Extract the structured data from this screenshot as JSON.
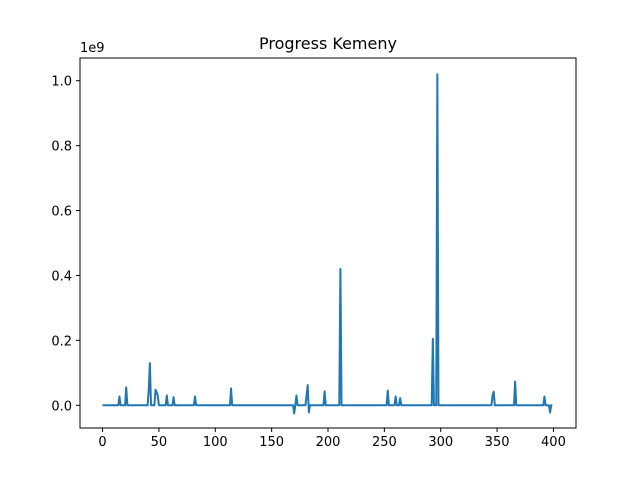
{
  "chart_data": {
    "type": "line",
    "title": "Progress Kemeny",
    "xlabel": "",
    "ylabel": "",
    "y_offset_label": "1e9",
    "xlim": [
      -20,
      420
    ],
    "ylim": [
      -0.07,
      1.07
    ],
    "x_ticks": [
      0,
      50,
      100,
      150,
      200,
      250,
      300,
      350,
      400
    ],
    "x_tick_labels": [
      "0",
      "50",
      "100",
      "150",
      "200",
      "250",
      "300",
      "350",
      "400"
    ],
    "y_ticks": [
      0.0,
      0.2,
      0.4,
      0.6,
      0.8,
      1.0
    ],
    "y_tick_labels": [
      "0.0",
      "0.2",
      "0.4",
      "0.6",
      "0.8",
      "1.0"
    ],
    "grid": false,
    "series": [
      {
        "color": "#1f77b4",
        "x": [
          0,
          14,
          15,
          16,
          20,
          21,
          22,
          40,
          41,
          42,
          43,
          46,
          47,
          48,
          49,
          50,
          56,
          57,
          58,
          62,
          63,
          64,
          81,
          82,
          83,
          113,
          114,
          115,
          169,
          170,
          171,
          172,
          173,
          180,
          181,
          182,
          183,
          184,
          196,
          197,
          198,
          210,
          211,
          212,
          252,
          253,
          254,
          259,
          260,
          261,
          263,
          264,
          265,
          292,
          293,
          294,
          296,
          297,
          298,
          345,
          346,
          347,
          348,
          365,
          366,
          367,
          391,
          392,
          393,
          396,
          397,
          398,
          399
        ],
        "y": [
          0,
          0,
          0.027,
          0,
          0,
          0.055,
          0,
          0,
          0.05,
          0.13,
          0,
          0,
          0.048,
          0.04,
          0.03,
          0,
          0,
          0.03,
          0,
          0,
          0.025,
          0,
          0,
          0.027,
          0,
          0,
          0.052,
          0,
          0,
          -0.025,
          0,
          0.03,
          0,
          0,
          0.03,
          0.062,
          -0.022,
          0,
          0,
          0.043,
          0,
          0,
          0.42,
          0,
          0,
          0.045,
          0,
          0,
          0.027,
          0,
          0,
          0.022,
          0,
          0,
          0.205,
          0,
          0,
          1.02,
          0,
          0,
          0.03,
          0.042,
          0,
          0,
          0.073,
          0,
          0,
          0.027,
          0,
          0,
          -0.022,
          0,
          0
        ]
      }
    ]
  }
}
